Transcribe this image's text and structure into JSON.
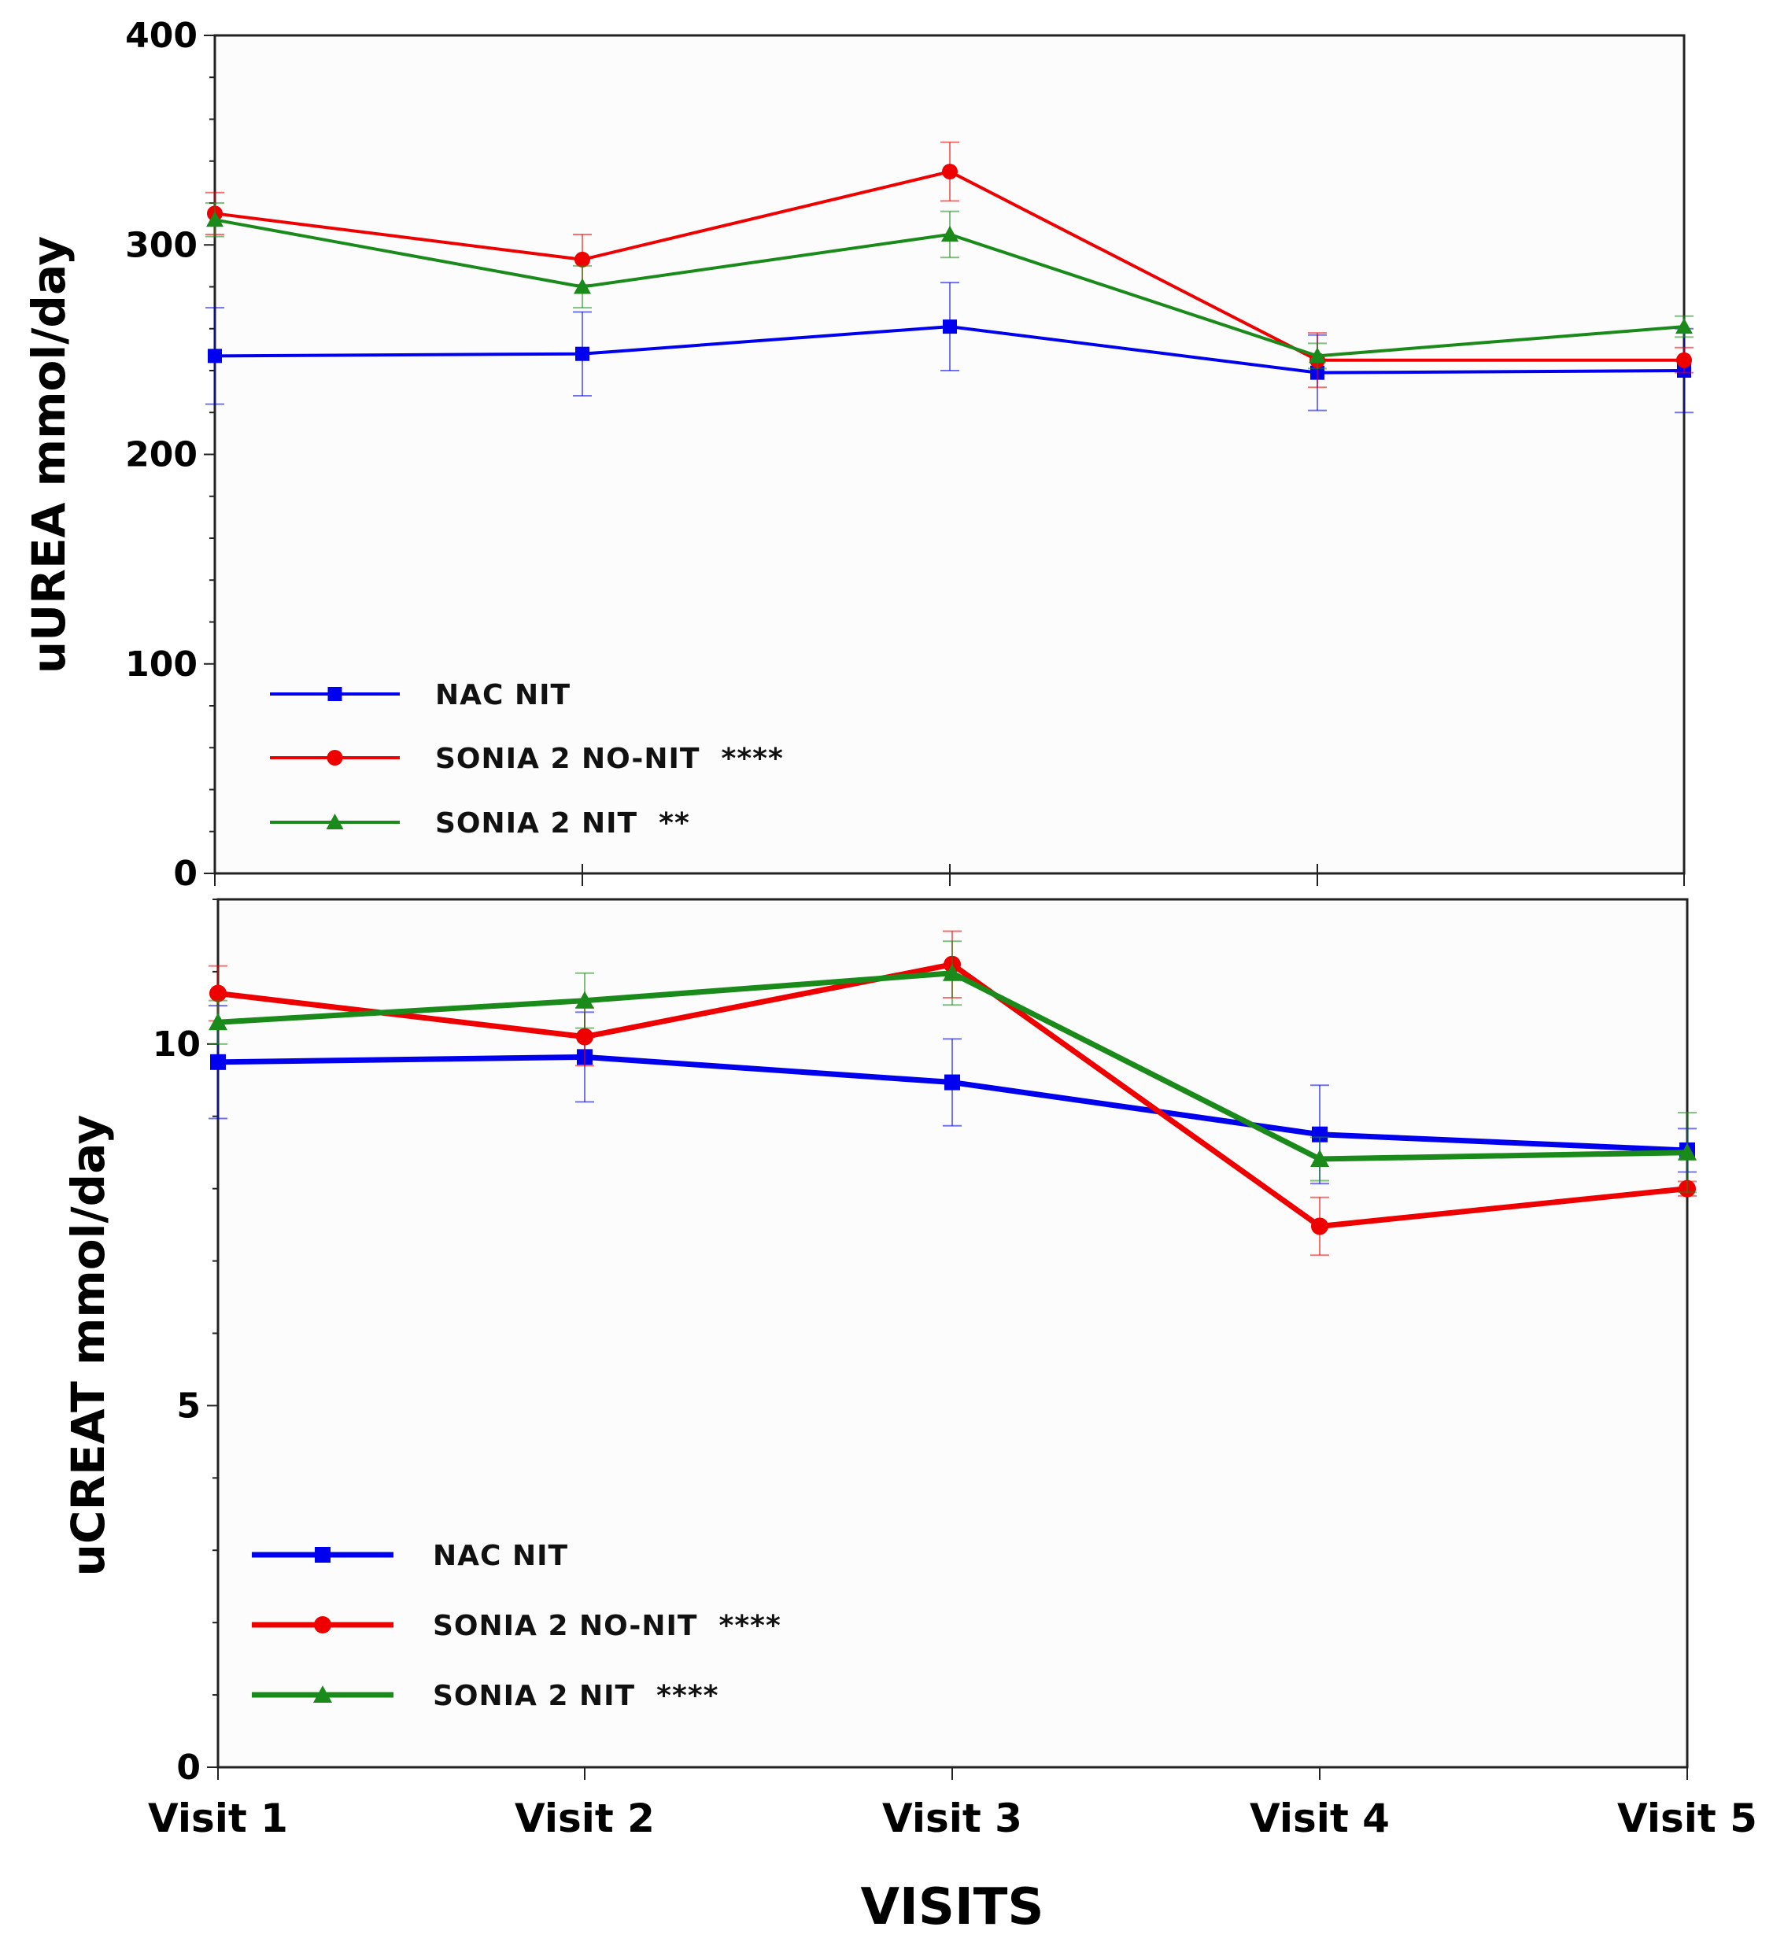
{
  "xlabel": "VISITS",
  "chart_data": [
    {
      "type": "line",
      "panel": "top",
      "title": "",
      "ylabel": "uUREA mmol/day",
      "xlabel": "VISITS",
      "categories": [
        "Visit 1",
        "Visit 2",
        "Visit 3",
        "Visit 4",
        "Visit 5"
      ],
      "ylim": [
        0,
        400
      ],
      "yticks": [
        "0",
        "100",
        "200",
        "300",
        "400"
      ],
      "series": [
        {
          "name": "NAC NIT",
          "label": "NAC NIT",
          "color": "#0000ee",
          "marker": "square",
          "values": [
            247,
            248,
            261,
            239,
            240
          ],
          "errors": [
            23,
            20,
            21,
            18,
            20
          ]
        },
        {
          "name": "SONIA 2 NO-NIT",
          "label": "SONIA 2 NO-NIT  ****",
          "color": "#ee0000",
          "marker": "circle",
          "values": [
            315,
            293,
            335,
            245,
            245
          ],
          "errors": [
            10,
            12,
            14,
            13,
            6
          ]
        },
        {
          "name": "SONIA 2 NIT",
          "label": "SONIA 2 NIT  **",
          "color": "#1a8a1a",
          "marker": "triangle",
          "values": [
            312,
            280,
            305,
            247,
            261
          ],
          "errors": [
            8,
            10,
            11,
            6,
            5
          ]
        }
      ],
      "legend_position": "bottom-left"
    },
    {
      "type": "line",
      "panel": "bottom",
      "title": "",
      "ylabel": "uCREAT mmol/day",
      "xlabel": "VISITS",
      "categories": [
        "Visit 1",
        "Visit 2",
        "Visit 3",
        "Visit 4",
        "Visit 5"
      ],
      "ylim": [
        0,
        12
      ],
      "yticks": [
        "0",
        "5",
        "10"
      ],
      "series": [
        {
          "name": "NAC NIT",
          "label": "NAC NIT",
          "color": "#0000ee",
          "marker": "square",
          "values": [
            9.75,
            9.82,
            9.47,
            8.75,
            8.53
          ],
          "errors": [
            0.78,
            0.62,
            0.6,
            0.68,
            0.3
          ]
        },
        {
          "name": "SONIA 2 NO-NIT",
          "label": "SONIA 2 NO-NIT  ****",
          "color": "#ee0000",
          "marker": "circle",
          "values": [
            10.7,
            10.1,
            11.1,
            7.48,
            8.0
          ],
          "errors": [
            0.38,
            0.4,
            0.46,
            0.4,
            0.1
          ]
        },
        {
          "name": "SONIA 2 NIT",
          "label": "SONIA 2 NIT  ****",
          "color": "#1a8a1a",
          "marker": "triangle",
          "values": [
            10.3,
            10.6,
            10.98,
            8.41,
            8.5
          ],
          "errors": [
            0.3,
            0.38,
            0.44,
            0.3,
            0.55
          ]
        }
      ],
      "legend_position": "bottom-left"
    }
  ]
}
